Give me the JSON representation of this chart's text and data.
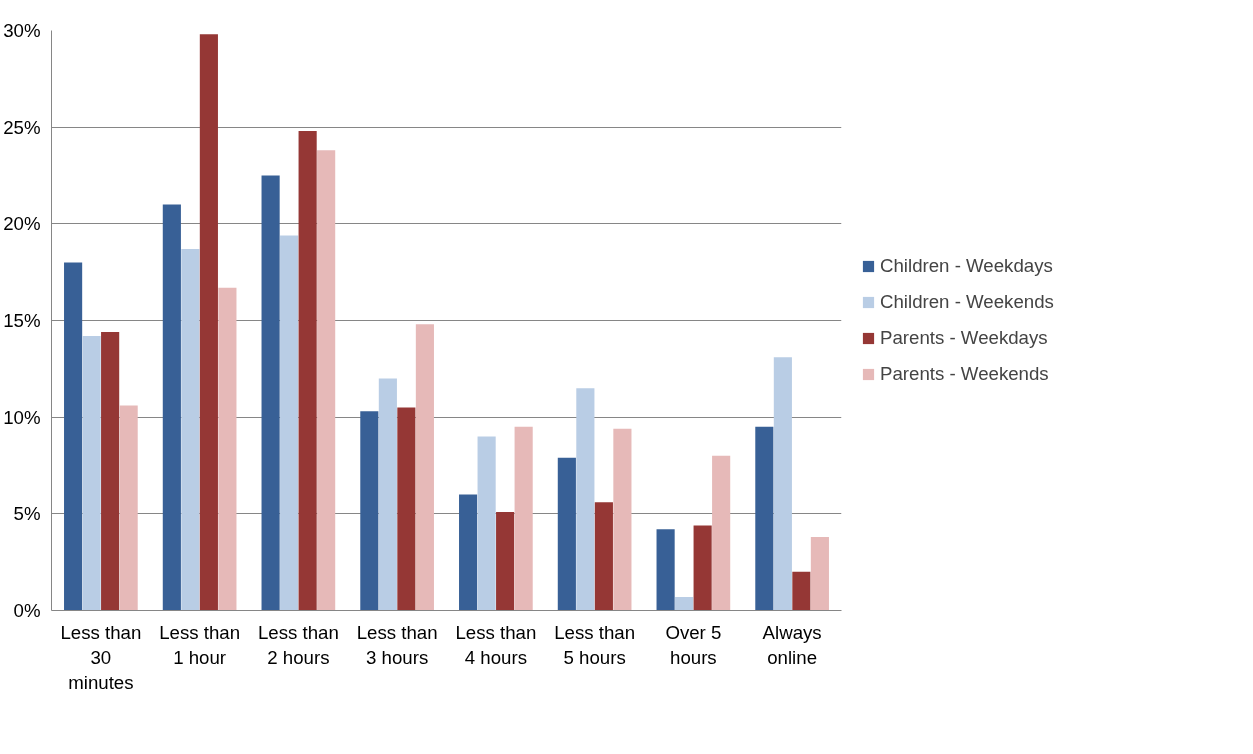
{
  "chart_data": {
    "type": "bar",
    "categories": [
      "Less than 30 minutes",
      "Less than 1 hour",
      "Less than 2 hours",
      "Less than 3 hours",
      "Less than 4 hours",
      "Less than 5 hours",
      "Over 5 hours",
      "Always online"
    ],
    "series": [
      {
        "name": "Children - Weekdays",
        "color": "#386096",
        "values": [
          18.0,
          21.0,
          22.5,
          10.3,
          6.0,
          7.9,
          4.2,
          9.5
        ]
      },
      {
        "name": "Children - Weekends",
        "color": "#b9cde5",
        "values": [
          14.2,
          18.7,
          19.4,
          12.0,
          9.0,
          11.5,
          0.7,
          13.1
        ]
      },
      {
        "name": "Parents - Weekdays",
        "color": "#953735",
        "values": [
          14.4,
          29.8,
          24.8,
          10.5,
          5.1,
          5.6,
          4.4,
          2.0
        ]
      },
      {
        "name": "Parents - Weekends",
        "color": "#e6b9b8",
        "values": [
          10.6,
          16.7,
          23.8,
          14.8,
          9.5,
          9.4,
          8.0,
          3.8
        ]
      }
    ],
    "ylim": [
      0,
      30
    ],
    "yticks": [
      {
        "value": 0,
        "label": "0%"
      },
      {
        "value": 5,
        "label": "5%"
      },
      {
        "value": 10,
        "label": "10%"
      },
      {
        "value": 15,
        "label": "15%"
      },
      {
        "value": 20,
        "label": "20%"
      },
      {
        "value": 25,
        "label": "25%"
      },
      {
        "value": 30,
        "label": "30%"
      }
    ],
    "grid": "y",
    "legend": "right"
  }
}
